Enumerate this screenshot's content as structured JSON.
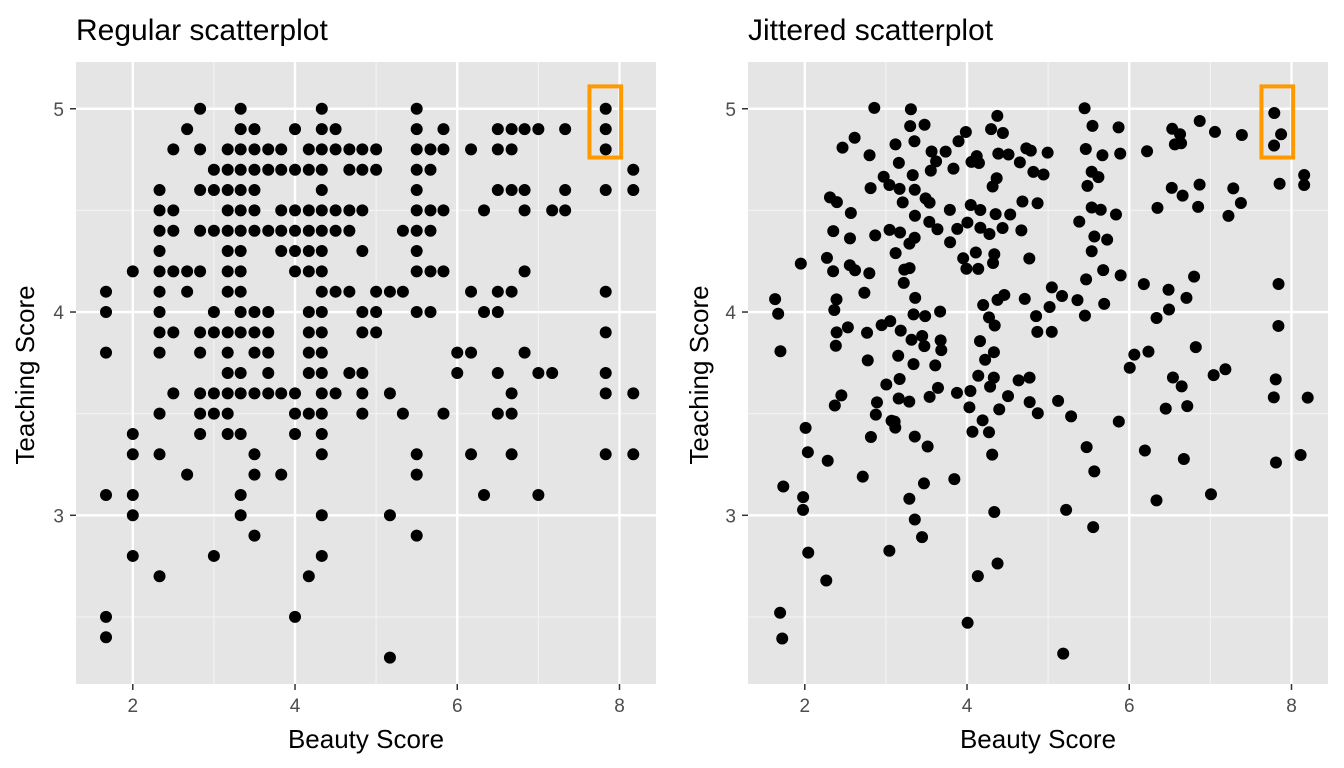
{
  "chart_data": [
    {
      "type": "scatter",
      "title": "Regular scatterplot",
      "xlabel": "Beauty Score",
      "ylabel": "Teaching Score",
      "xlim": [
        1.3,
        8.45
      ],
      "ylim": [
        2.17,
        5.23
      ],
      "xticks": [
        2,
        4,
        6,
        8
      ],
      "yticks": [
        3,
        4,
        5
      ],
      "grid": true,
      "panel_background": "#e5e5e5",
      "point_color": "#000000",
      "highlight_color": "#ff9900",
      "highlight": {
        "x": [
          7.63,
          8.02
        ],
        "y": [
          4.76,
          5.11
        ]
      },
      "points": [
        [
          1.67,
          4.1
        ],
        [
          1.67,
          4.0
        ],
        [
          1.67,
          3.8
        ],
        [
          1.67,
          3.1
        ],
        [
          1.67,
          2.5
        ],
        [
          1.67,
          2.4
        ],
        [
          2.0,
          4.2
        ],
        [
          2.0,
          3.4
        ],
        [
          2.0,
          3.3
        ],
        [
          2.0,
          3.1
        ],
        [
          2.0,
          3.0
        ],
        [
          2.0,
          2.8
        ],
        [
          2.33,
          4.6
        ],
        [
          2.33,
          4.5
        ],
        [
          2.33,
          4.4
        ],
        [
          2.33,
          4.3
        ],
        [
          2.33,
          4.2
        ],
        [
          2.33,
          4.1
        ],
        [
          2.33,
          4.0
        ],
        [
          2.33,
          3.9
        ],
        [
          2.33,
          3.8
        ],
        [
          2.33,
          3.5
        ],
        [
          2.33,
          3.3
        ],
        [
          2.33,
          2.7
        ],
        [
          2.5,
          4.8
        ],
        [
          2.5,
          4.5
        ],
        [
          2.5,
          4.4
        ],
        [
          2.5,
          4.2
        ],
        [
          2.5,
          3.9
        ],
        [
          2.5,
          3.6
        ],
        [
          2.67,
          4.9
        ],
        [
          2.67,
          4.2
        ],
        [
          2.67,
          4.1
        ],
        [
          2.67,
          3.2
        ],
        [
          2.83,
          5.0
        ],
        [
          2.83,
          4.8
        ],
        [
          2.83,
          4.6
        ],
        [
          2.83,
          4.4
        ],
        [
          2.83,
          4.2
        ],
        [
          2.83,
          3.9
        ],
        [
          2.83,
          3.8
        ],
        [
          2.83,
          3.6
        ],
        [
          2.83,
          3.5
        ],
        [
          2.83,
          3.4
        ],
        [
          3.0,
          4.7
        ],
        [
          3.0,
          4.6
        ],
        [
          3.0,
          4.4
        ],
        [
          3.0,
          4.0
        ],
        [
          3.0,
          3.9
        ],
        [
          3.0,
          3.6
        ],
        [
          3.0,
          3.5
        ],
        [
          3.0,
          2.8
        ],
        [
          3.17,
          4.8
        ],
        [
          3.17,
          4.7
        ],
        [
          3.17,
          4.6
        ],
        [
          3.17,
          4.5
        ],
        [
          3.17,
          4.4
        ],
        [
          3.17,
          4.3
        ],
        [
          3.17,
          4.2
        ],
        [
          3.17,
          4.1
        ],
        [
          3.17,
          3.9
        ],
        [
          3.17,
          3.8
        ],
        [
          3.17,
          3.7
        ],
        [
          3.17,
          3.6
        ],
        [
          3.17,
          3.5
        ],
        [
          3.17,
          3.4
        ],
        [
          3.33,
          5.0
        ],
        [
          3.33,
          4.9
        ],
        [
          3.33,
          4.8
        ],
        [
          3.33,
          4.7
        ],
        [
          3.33,
          4.6
        ],
        [
          3.33,
          4.5
        ],
        [
          3.33,
          4.4
        ],
        [
          3.33,
          4.3
        ],
        [
          3.33,
          4.2
        ],
        [
          3.33,
          4.1
        ],
        [
          3.33,
          4.0
        ],
        [
          3.33,
          3.9
        ],
        [
          3.33,
          3.7
        ],
        [
          3.33,
          3.6
        ],
        [
          3.33,
          3.4
        ],
        [
          3.33,
          3.1
        ],
        [
          3.33,
          3.0
        ],
        [
          3.5,
          4.9
        ],
        [
          3.5,
          4.8
        ],
        [
          3.5,
          4.7
        ],
        [
          3.5,
          4.6
        ],
        [
          3.5,
          4.5
        ],
        [
          3.5,
          4.4
        ],
        [
          3.5,
          4.0
        ],
        [
          3.5,
          3.9
        ],
        [
          3.5,
          3.8
        ],
        [
          3.5,
          3.6
        ],
        [
          3.5,
          3.3
        ],
        [
          3.5,
          3.2
        ],
        [
          3.5,
          2.9
        ],
        [
          3.67,
          4.8
        ],
        [
          3.67,
          4.7
        ],
        [
          3.67,
          4.4
        ],
        [
          3.67,
          4.0
        ],
        [
          3.67,
          3.9
        ],
        [
          3.67,
          3.8
        ],
        [
          3.67,
          3.7
        ],
        [
          3.67,
          3.6
        ],
        [
          3.83,
          4.8
        ],
        [
          3.83,
          4.7
        ],
        [
          3.83,
          4.5
        ],
        [
          3.83,
          4.4
        ],
        [
          3.83,
          4.3
        ],
        [
          3.83,
          3.6
        ],
        [
          3.83,
          3.2
        ],
        [
          4.0,
          4.9
        ],
        [
          4.0,
          4.7
        ],
        [
          4.0,
          4.5
        ],
        [
          4.0,
          4.4
        ],
        [
          4.0,
          4.3
        ],
        [
          4.0,
          4.2
        ],
        [
          4.0,
          3.6
        ],
        [
          4.0,
          3.5
        ],
        [
          4.0,
          3.4
        ],
        [
          4.0,
          2.5
        ],
        [
          4.17,
          4.8
        ],
        [
          4.17,
          4.7
        ],
        [
          4.17,
          4.5
        ],
        [
          4.17,
          4.4
        ],
        [
          4.17,
          4.3
        ],
        [
          4.17,
          4.2
        ],
        [
          4.17,
          4.0
        ],
        [
          4.17,
          3.9
        ],
        [
          4.17,
          3.8
        ],
        [
          4.17,
          3.7
        ],
        [
          4.17,
          3.5
        ],
        [
          4.17,
          2.7
        ],
        [
          4.33,
          5.0
        ],
        [
          4.33,
          4.9
        ],
        [
          4.33,
          4.8
        ],
        [
          4.33,
          4.7
        ],
        [
          4.33,
          4.6
        ],
        [
          4.33,
          4.5
        ],
        [
          4.33,
          4.4
        ],
        [
          4.33,
          4.3
        ],
        [
          4.33,
          4.2
        ],
        [
          4.33,
          4.1
        ],
        [
          4.33,
          4.0
        ],
        [
          4.33,
          3.9
        ],
        [
          4.33,
          3.8
        ],
        [
          4.33,
          3.7
        ],
        [
          4.33,
          3.6
        ],
        [
          4.33,
          3.5
        ],
        [
          4.33,
          3.4
        ],
        [
          4.33,
          3.3
        ],
        [
          4.33,
          3.0
        ],
        [
          4.33,
          2.8
        ],
        [
          4.5,
          4.9
        ],
        [
          4.5,
          4.8
        ],
        [
          4.5,
          4.5
        ],
        [
          4.5,
          4.4
        ],
        [
          4.5,
          4.1
        ],
        [
          4.5,
          3.6
        ],
        [
          4.67,
          4.8
        ],
        [
          4.67,
          4.7
        ],
        [
          4.67,
          4.5
        ],
        [
          4.67,
          4.4
        ],
        [
          4.67,
          4.1
        ],
        [
          4.67,
          3.7
        ],
        [
          4.83,
          4.8
        ],
        [
          4.83,
          4.7
        ],
        [
          4.83,
          4.5
        ],
        [
          4.83,
          4.3
        ],
        [
          4.83,
          4.0
        ],
        [
          4.83,
          3.9
        ],
        [
          4.83,
          3.7
        ],
        [
          4.83,
          3.6
        ],
        [
          4.83,
          3.5
        ],
        [
          5.0,
          4.8
        ],
        [
          5.0,
          4.7
        ],
        [
          5.0,
          4.1
        ],
        [
          5.0,
          4.0
        ],
        [
          5.0,
          3.9
        ],
        [
          5.17,
          4.1
        ],
        [
          5.17,
          3.6
        ],
        [
          5.17,
          3.0
        ],
        [
          5.17,
          2.3
        ],
        [
          5.33,
          4.4
        ],
        [
          5.33,
          4.1
        ],
        [
          5.33,
          3.5
        ],
        [
          5.5,
          5.0
        ],
        [
          5.5,
          4.9
        ],
        [
          5.5,
          4.8
        ],
        [
          5.5,
          4.7
        ],
        [
          5.5,
          4.6
        ],
        [
          5.5,
          4.5
        ],
        [
          5.5,
          4.4
        ],
        [
          5.5,
          4.3
        ],
        [
          5.5,
          4.2
        ],
        [
          5.5,
          4.0
        ],
        [
          5.5,
          3.3
        ],
        [
          5.5,
          3.2
        ],
        [
          5.5,
          2.9
        ],
        [
          5.67,
          4.8
        ],
        [
          5.67,
          4.7
        ],
        [
          5.67,
          4.5
        ],
        [
          5.67,
          4.4
        ],
        [
          5.67,
          4.2
        ],
        [
          5.67,
          4.0
        ],
        [
          5.83,
          4.9
        ],
        [
          5.83,
          4.8
        ],
        [
          5.83,
          4.5
        ],
        [
          5.83,
          4.2
        ],
        [
          5.83,
          3.5
        ],
        [
          6.0,
          3.8
        ],
        [
          6.0,
          3.7
        ],
        [
          6.17,
          4.8
        ],
        [
          6.17,
          4.1
        ],
        [
          6.17,
          3.8
        ],
        [
          6.17,
          3.3
        ],
        [
          6.33,
          4.5
        ],
        [
          6.33,
          4.0
        ],
        [
          6.33,
          3.1
        ],
        [
          6.5,
          4.9
        ],
        [
          6.5,
          4.8
        ],
        [
          6.5,
          4.6
        ],
        [
          6.5,
          4.1
        ],
        [
          6.5,
          4.0
        ],
        [
          6.5,
          3.7
        ],
        [
          6.5,
          3.5
        ],
        [
          6.67,
          4.9
        ],
        [
          6.67,
          4.8
        ],
        [
          6.67,
          4.6
        ],
        [
          6.67,
          4.1
        ],
        [
          6.67,
          3.6
        ],
        [
          6.67,
          3.5
        ],
        [
          6.67,
          3.3
        ],
        [
          6.83,
          4.9
        ],
        [
          6.83,
          4.6
        ],
        [
          6.83,
          4.5
        ],
        [
          6.83,
          4.2
        ],
        [
          6.83,
          3.8
        ],
        [
          7.0,
          4.9
        ],
        [
          7.0,
          3.7
        ],
        [
          7.0,
          3.1
        ],
        [
          7.17,
          4.5
        ],
        [
          7.17,
          3.7
        ],
        [
          7.33,
          4.9
        ],
        [
          7.33,
          4.6
        ],
        [
          7.33,
          4.5
        ],
        [
          7.83,
          5.0
        ],
        [
          7.83,
          4.9
        ],
        [
          7.83,
          4.8
        ],
        [
          7.83,
          4.6
        ],
        [
          7.83,
          4.1
        ],
        [
          7.83,
          3.9
        ],
        [
          7.83,
          3.7
        ],
        [
          7.83,
          3.6
        ],
        [
          7.83,
          3.3
        ],
        [
          8.17,
          4.7
        ],
        [
          8.17,
          4.6
        ],
        [
          8.17,
          3.6
        ],
        [
          8.17,
          3.3
        ]
      ]
    },
    {
      "type": "scatter",
      "title": "Jittered scatterplot",
      "xlabel": "Beauty Score",
      "ylabel": "Teaching Score",
      "xlim": [
        1.3,
        8.45
      ],
      "ylim": [
        2.17,
        5.23
      ],
      "xticks": [
        2,
        4,
        6,
        8
      ],
      "yticks": [
        3,
        4,
        5
      ],
      "grid": true,
      "panel_background": "#e5e5e5",
      "point_color": "#000000",
      "highlight_color": "#ff9900",
      "highlight": {
        "x": [
          7.63,
          8.02
        ],
        "y": [
          4.76,
          5.11
        ]
      },
      "jitter": {
        "x": 0.07,
        "y": 0.045,
        "seed": 20
      }
    }
  ]
}
